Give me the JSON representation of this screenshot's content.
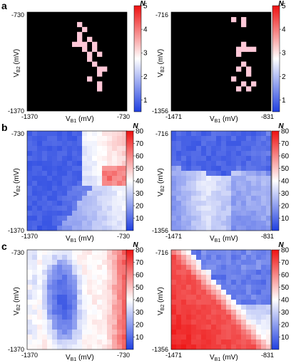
{
  "panel_labels": [
    "a",
    "b",
    "c"
  ],
  "axis_labels": {
    "x_main": "V",
    "x_sub": "B1",
    "x_unit": " (mV)",
    "y_main": "V",
    "y_sub": "B2",
    "y_unit": " (mV)"
  },
  "colorbar_title": "N",
  "colors": {
    "low": "#1f3fe0",
    "mid": "#ffffff",
    "high": "#ee1111",
    "background_black": "#000000",
    "highlight_pink": "#ffc8d8"
  },
  "chart_data": [
    {
      "id": "a-left",
      "type": "heatmap",
      "pattern": "sparse",
      "title": "",
      "xlabel": "VB1 (mV)",
      "ylabel": "VB2 (mV)",
      "xlim": [
        -1370,
        -730
      ],
      "ylim": [
        -1370,
        -730
      ],
      "x_ticks": [
        "-1370",
        "-730"
      ],
      "y_ticks": [
        "-730",
        "-1370"
      ],
      "grid_size": 20,
      "value_range": [
        0.5,
        5.0
      ],
      "colorbar_ticks": [
        1,
        2,
        3,
        4,
        5
      ],
      "background_value": 0,
      "hot_cells": [
        [
          2,
          10
        ],
        [
          3,
          11
        ],
        [
          4,
          10
        ],
        [
          5,
          10
        ],
        [
          5,
          12
        ],
        [
          6,
          9
        ],
        [
          6,
          10
        ],
        [
          6,
          11
        ],
        [
          6,
          13
        ],
        [
          7,
          11
        ],
        [
          7,
          13
        ],
        [
          8,
          14
        ],
        [
          8,
          12
        ],
        [
          9,
          12
        ],
        [
          10,
          13
        ],
        [
          11,
          14
        ],
        [
          11,
          15
        ],
        [
          12,
          14
        ],
        [
          13,
          12
        ],
        [
          14,
          14
        ],
        [
          15,
          14
        ]
      ]
    },
    {
      "id": "a-right",
      "type": "heatmap",
      "pattern": "sparse",
      "title": "",
      "xlabel": "VB1 (mV)",
      "ylabel": "VB2 (mV)",
      "xlim": [
        -1471,
        -831
      ],
      "ylim": [
        -1356,
        -716
      ],
      "x_ticks": [
        "-1471",
        "-831"
      ],
      "y_ticks": [
        "-716",
        "-1356"
      ],
      "grid_size": 20,
      "value_range": [
        0.5,
        5.0
      ],
      "colorbar_ticks": [
        1,
        2,
        3,
        4,
        5
      ],
      "background_value": 0,
      "hot_cells": [
        [
          1,
          12
        ],
        [
          1,
          14
        ],
        [
          2,
          14
        ],
        [
          6,
          14
        ],
        [
          7,
          13
        ],
        [
          7,
          14
        ],
        [
          7,
          15
        ],
        [
          7,
          16
        ],
        [
          8,
          13
        ],
        [
          10,
          14
        ],
        [
          11,
          13
        ],
        [
          11,
          15
        ],
        [
          12,
          15
        ],
        [
          13,
          12
        ],
        [
          14,
          14
        ],
        [
          14,
          16
        ],
        [
          15,
          13
        ],
        [
          15,
          15
        ]
      ]
    },
    {
      "id": "b-left",
      "type": "heatmap",
      "pattern": "b1",
      "title": "",
      "xlabel": "VB1 (mV)",
      "ylabel": "VB2 (mV)",
      "xlim": [
        -1370,
        -730
      ],
      "ylim": [
        -1370,
        -730
      ],
      "x_ticks": [
        "-1370",
        "-730"
      ],
      "y_ticks": [
        "-730",
        "-1370"
      ],
      "grid_size": 20,
      "value_range": [
        0,
        80
      ],
      "colorbar_ticks": [
        10,
        20,
        30,
        40,
        50,
        60,
        70,
        80
      ]
    },
    {
      "id": "b-right",
      "type": "heatmap",
      "pattern": "b2",
      "title": "",
      "xlabel": "VB1 (mV)",
      "ylabel": "VB2 (mV)",
      "xlim": [
        -1471,
        -831
      ],
      "ylim": [
        -1356,
        -716
      ],
      "x_ticks": [
        "-1471",
        "-831"
      ],
      "y_ticks": [
        "-716",
        "-1356"
      ],
      "grid_size": 20,
      "value_range": [
        0,
        80
      ],
      "colorbar_ticks": [
        10,
        20,
        30,
        40,
        50,
        60,
        70,
        80
      ]
    },
    {
      "id": "c-left",
      "type": "heatmap",
      "pattern": "c1",
      "title": "",
      "xlabel": "VB1 (mV)",
      "ylabel": "VB2 (mV)",
      "xlim": [
        -1370,
        -730
      ],
      "ylim": [
        -1370,
        -730
      ],
      "x_ticks": [
        "-1370",
        "-730"
      ],
      "y_ticks": [
        "-730",
        "-1370"
      ],
      "grid_size": 20,
      "value_range": [
        0,
        80
      ],
      "colorbar_ticks": [
        10,
        20,
        30,
        40,
        50,
        60,
        70,
        80
      ]
    },
    {
      "id": "c-right",
      "type": "heatmap",
      "pattern": "c2",
      "title": "",
      "xlabel": "VB1 (mV)",
      "ylabel": "VB2 (mV)",
      "xlim": [
        -1471,
        -831
      ],
      "ylim": [
        -1356,
        -716
      ],
      "x_ticks": [
        "-1471",
        "-831"
      ],
      "y_ticks": [
        "-716",
        "-1356"
      ],
      "grid_size": 20,
      "value_range": [
        0,
        80
      ],
      "colorbar_ticks": [
        10,
        20,
        30,
        40,
        50,
        60,
        70,
        80
      ]
    }
  ]
}
